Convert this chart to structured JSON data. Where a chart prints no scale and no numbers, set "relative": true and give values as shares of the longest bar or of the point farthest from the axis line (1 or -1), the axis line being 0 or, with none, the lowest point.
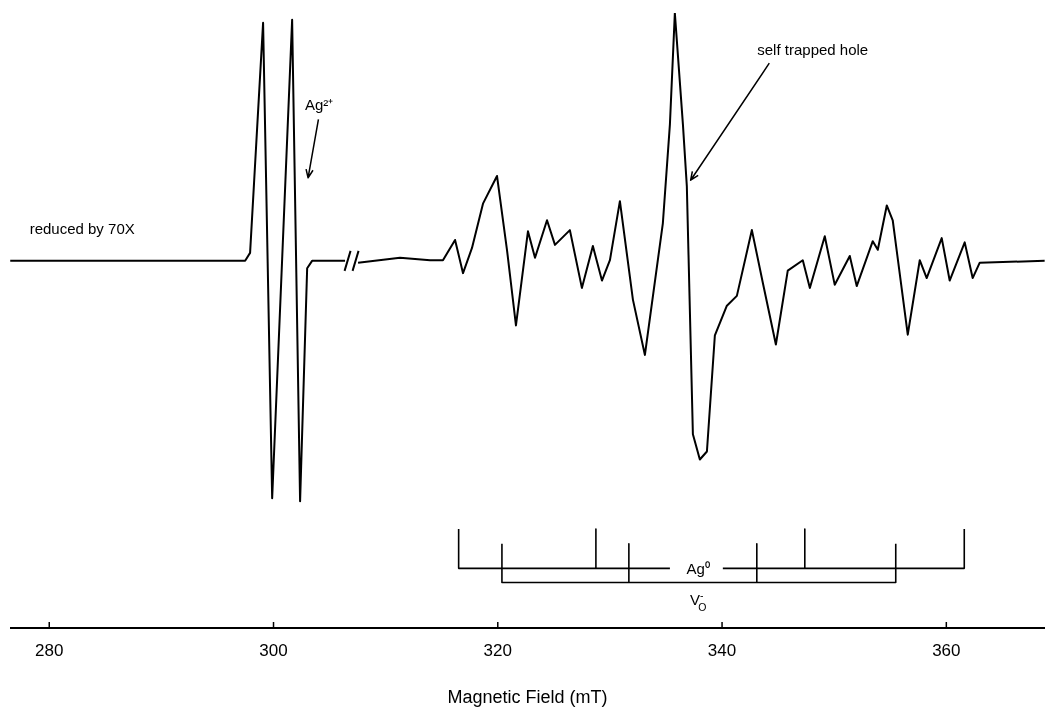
{
  "chart_data": {
    "type": "line",
    "relative": true,
    "xlabel": "Magnetic Field (mT)",
    "xlim": [
      276.5,
      368.8
    ],
    "xticks": [
      280,
      300,
      320,
      340,
      360
    ],
    "series": [
      {
        "color": "#000000",
        "x": [
          276.52,
          297.47,
          297.91,
          299.07,
          299.88,
          301.66,
          302.37,
          303.0,
          303.44,
          306.38,
          306.9,
          307.54,
          311.28,
          313.96,
          315.11,
          316.19,
          316.9,
          317.7,
          318.68,
          319.93,
          320.82,
          321.62,
          322.69,
          323.32,
          324.39,
          325.1,
          326.43,
          327.5,
          328.48,
          329.29,
          330.0,
          330.89,
          332.05,
          333.12,
          334.72,
          335.35,
          335.79,
          336.51,
          336.86,
          337.4,
          338.02,
          338.65,
          339.36,
          340.43,
          341.32,
          342.66,
          343.64,
          344.8,
          345.86,
          347.2,
          347.83,
          349.16,
          350.05,
          351.39,
          352.01,
          353.44,
          353.89,
          354.69,
          355.22,
          356.56,
          357.63,
          358.25,
          359.59,
          360.3,
          361.64,
          362.35,
          362.98,
          368.77
        ],
        "values": [
          0.597,
          0.597,
          0.61,
          0.984,
          0.211,
          0.989,
          0.206,
          0.585,
          0.597,
          0.597,
          null,
          0.594,
          0.602,
          0.598,
          0.598,
          0.631,
          0.577,
          0.618,
          0.69,
          0.735,
          0.615,
          0.492,
          0.645,
          0.602,
          0.663,
          0.623,
          0.647,
          0.553,
          0.621,
          0.565,
          0.598,
          0.694,
          0.534,
          0.444,
          0.658,
          0.819,
          1.0,
          0.819,
          0.718,
          0.315,
          0.274,
          0.287,
          0.476,
          0.524,
          0.54,
          0.647,
          0.561,
          0.461,
          0.581,
          0.598,
          0.553,
          0.637,
          0.558,
          0.605,
          0.556,
          0.629,
          0.615,
          0.687,
          0.663,
          0.477,
          0.598,
          0.569,
          0.634,
          0.565,
          0.627,
          0.569,
          0.594,
          0.597
        ]
      },
      {
        "color": "#000000",
        "x": [
          320.37,
          320.37,
          331.69,
          331.69,
          331.69,
          343.1,
          343.1,
          343.1,
          355.49,
          355.49
        ],
        "values": [
          0.137,
          0.074,
          0.074,
          0.137,
          0.074,
          0.074,
          0.137,
          0.074,
          0.074,
          0.137
        ]
      },
      {
        "color": "#000000",
        "x": [
          316.51,
          316.51,
          328.75,
          328.75,
          328.75,
          335.35,
          335.4,
          340.07,
          347.38,
          347.38,
          347.38,
          361.6,
          361.6
        ],
        "values": [
          0.161,
          0.097,
          0.097,
          0.161,
          0.097,
          0.097,
          null,
          0.097,
          0.097,
          0.161,
          0.097,
          0.097,
          0.161
        ]
      }
    ],
    "annotations": [
      "reduced by 70X",
      "Ag²⁺",
      {
        "text": "self trapped hole",
        "x": 336.9,
        "y": 0.72
      },
      "V$^{-}$$_{O}$",
      "Ag⁰"
    ]
  }
}
